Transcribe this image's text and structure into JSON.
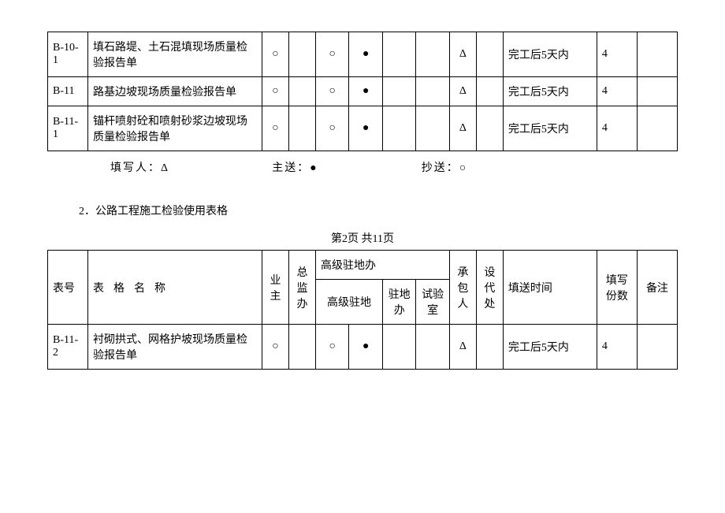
{
  "table1": {
    "rows": [
      {
        "code": "B-10-1",
        "name": "填石路堤、土石混填现场质量检验报告单",
        "c1": "○",
        "c2": "",
        "c3": "○",
        "c4": "●",
        "c5": "",
        "c6": "",
        "c7": "Δ",
        "c8": "",
        "time": "完工后5天内",
        "copies": "4",
        "remark": ""
      },
      {
        "code": "B-11",
        "name": "路基边坡现场质量检验报告单",
        "c1": "○",
        "c2": "",
        "c3": "○",
        "c4": "●",
        "c5": "",
        "c6": "",
        "c7": "Δ",
        "c8": "",
        "time": "完工后5天内",
        "copies": "4",
        "remark": ""
      },
      {
        "code": "B-11-1",
        "name": "锚杆喷射砼和喷射砂浆边坡现场质量检验报告单",
        "c1": "○",
        "c2": "",
        "c3": "○",
        "c4": "●",
        "c5": "",
        "c6": "",
        "c7": "Δ",
        "c8": "",
        "time": "完工后5天内",
        "copies": "4",
        "remark": ""
      }
    ]
  },
  "legend": {
    "writer": "填写人：Δ",
    "main": "主送：●",
    "copy": "抄送：○"
  },
  "section2": "2．公路工程施工检验使用表格",
  "pagenum": "第2页 共11页",
  "table2": {
    "header": {
      "code": "表号",
      "name_prefix": "表",
      "name_mid": "格",
      "name_mid2": "名",
      "name_suffix": "称",
      "owner": "业主",
      "supervisor": "总监办",
      "senior_group": "高级驻地办",
      "senior": "高级驻地",
      "resident": "驻地办",
      "lab": "试验室",
      "contractor": "承包人",
      "designer": "设代处",
      "time": "填送时间",
      "copies": "填写份数",
      "remark": "备注"
    },
    "rows": [
      {
        "code": "B-11-2",
        "name": "衬砌拱式、网格护坡现场质量检验报告单",
        "c1": "○",
        "c2": "",
        "c3": "○",
        "c4": "●",
        "c5": "",
        "c6": "",
        "c7": "Δ",
        "c8": "",
        "time": "完工后5天内",
        "copies": "4",
        "remark": ""
      }
    ]
  },
  "col_widths": {
    "code": "6%",
    "name": "26%",
    "c1": "4%",
    "c2": "4%",
    "c3": "5%",
    "c4": "5%",
    "c5": "5%",
    "c6": "5%",
    "c7": "4%",
    "c8": "4%",
    "time": "14%",
    "copies": "6%",
    "remark": "6%"
  }
}
